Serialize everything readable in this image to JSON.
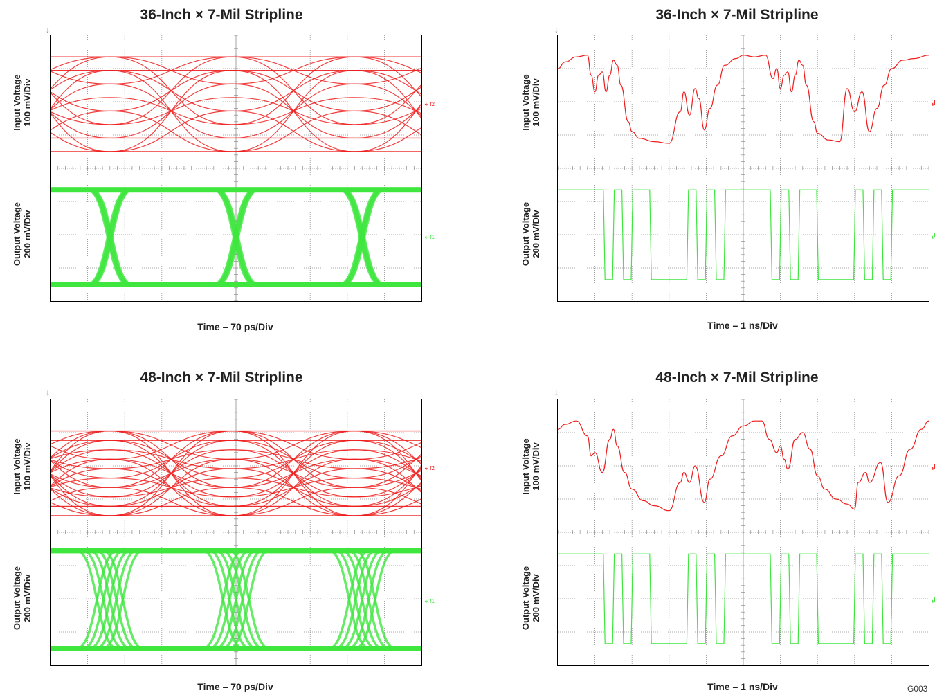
{
  "figure_id": "G003",
  "colors": {
    "input": "#ee1c1c",
    "output": "#3ee63e",
    "grid": "#8c8c8c"
  },
  "chart_data": [
    {
      "type": "line",
      "title": "36-Inch × 7-Mil Stripline",
      "view": "eye diagram",
      "xlabel": "Time – 70 ps/Div",
      "xlim": [
        0,
        10
      ],
      "grid": true,
      "series": [
        {
          "ylabel_line1": "Input Voltage",
          "ylabel_line2": "100 mV/Div",
          "marker": "f2",
          "high_div": 2.85,
          "low_div": 0.0,
          "levels": 8,
          "ui_div": 3.3,
          "crossings_div": [
            1.6,
            4.9,
            8.2
          ]
        },
        {
          "ylabel_line1": "Output Voltage",
          "ylabel_line2": "200 mV/Div",
          "marker": "f1",
          "high_div": 2.85,
          "low_div": 0.0,
          "ui_div": 3.4,
          "crossings_div": [
            1.6,
            5.0,
            8.4
          ],
          "jitter_div": 0.06
        }
      ]
    },
    {
      "type": "line",
      "title": "36-Inch × 7-Mil Stripline",
      "view": "waveform",
      "xlabel": "Time – 1 ns/Div",
      "xlim": [
        0,
        10
      ],
      "grid": true,
      "series": [
        {
          "ylabel_line1": "Input Voltage",
          "ylabel_line2": "100 mV/Div",
          "marker": "f2",
          "x": [
            0,
            0.2,
            0.5,
            0.8,
            0.9,
            1.0,
            1.1,
            1.2,
            1.3,
            1.4,
            1.5,
            1.6,
            1.7,
            1.9,
            2.0,
            2.2,
            2.6,
            3.0,
            3.3,
            3.4,
            3.55,
            3.7,
            3.8,
            3.95,
            4.1,
            4.3,
            4.5,
            4.8,
            5.0,
            5.3,
            5.6,
            5.8,
            5.9,
            6.0,
            6.1,
            6.2,
            6.3,
            6.4,
            6.5,
            6.6,
            6.7,
            6.9,
            7.0,
            7.3,
            7.6,
            7.8,
            8.0,
            8.2,
            8.4,
            8.6,
            8.8,
            9.0,
            9.3,
            9.6,
            10.0
          ],
          "y": [
            2.5,
            2.7,
            2.85,
            2.9,
            2.3,
            1.8,
            2.3,
            2.4,
            1.8,
            2.3,
            2.75,
            2.6,
            2.0,
            0.9,
            0.6,
            0.4,
            0.3,
            0.25,
            1.2,
            1.8,
            1.1,
            1.9,
            1.6,
            0.65,
            1.3,
            2.0,
            2.6,
            2.8,
            2.9,
            2.85,
            2.9,
            2.2,
            2.5,
            1.9,
            2.3,
            2.4,
            1.8,
            2.3,
            2.75,
            2.6,
            2.0,
            0.9,
            0.55,
            0.35,
            0.3,
            1.9,
            1.2,
            1.8,
            0.6,
            1.3,
            2.0,
            2.5,
            2.75,
            2.8,
            2.9
          ]
        },
        {
          "ylabel_line1": "Output Voltage",
          "ylabel_line2": "200 mV/Div",
          "marker": "f1",
          "bits": [
            1,
            1,
            1,
            1,
            1,
            0,
            1,
            0,
            1,
            1,
            0,
            0,
            0,
            0,
            1,
            0,
            1,
            0,
            1,
            1,
            1,
            1,
            1,
            0,
            1,
            0,
            1,
            1,
            0,
            0,
            0,
            0,
            1,
            0,
            1,
            0,
            1,
            1,
            1,
            1
          ],
          "bit_period_div": 0.25,
          "high_div": 2.85,
          "low_div": 0.15
        }
      ]
    },
    {
      "type": "line",
      "title": "48-Inch × 7-Mil Stripline",
      "view": "eye diagram",
      "xlabel": "Time – 70 ps/Div",
      "xlim": [
        0,
        10
      ],
      "grid": true,
      "series": [
        {
          "ylabel_line1": "Input Voltage",
          "ylabel_line2": "100 mV/Div",
          "marker": "f2",
          "high_div": 2.55,
          "low_div": 0.0,
          "levels": 10,
          "ui_div": 3.3,
          "crossings_div": [
            1.6,
            4.9,
            8.2
          ]
        },
        {
          "ylabel_line1": "Output Voltage",
          "ylabel_line2": "200 mV/Div",
          "marker": "f1",
          "high_div": 2.95,
          "low_div": 0.0,
          "ui_div": 3.4,
          "crossings_div": [
            1.6,
            5.0,
            8.4
          ],
          "jitter_div": 0.35
        }
      ]
    },
    {
      "type": "line",
      "title": "48-Inch × 7-Mil Stripline",
      "view": "waveform",
      "xlabel": "Time – 1 ns/Div",
      "xlim": [
        0,
        10
      ],
      "grid": true,
      "series": [
        {
          "ylabel_line1": "Input Voltage",
          "ylabel_line2": "100 mV/Div",
          "marker": "f2",
          "x": [
            0,
            0.2,
            0.5,
            0.8,
            0.9,
            1.0,
            1.2,
            1.4,
            1.5,
            1.6,
            1.8,
            2.0,
            2.3,
            2.6,
            3.0,
            3.3,
            3.4,
            3.55,
            3.7,
            3.95,
            4.1,
            4.4,
            4.7,
            5.0,
            5.3,
            5.5,
            5.7,
            5.9,
            6.0,
            6.1,
            6.2,
            6.4,
            6.6,
            6.8,
            7.0,
            7.2,
            7.5,
            7.8,
            8.0,
            8.1,
            8.3,
            8.4,
            8.7,
            8.9,
            9.2,
            9.5,
            9.8,
            10.0
          ],
          "y": [
            2.6,
            2.75,
            2.85,
            2.4,
            1.8,
            1.9,
            1.3,
            2.3,
            2.6,
            2.1,
            1.3,
            0.8,
            0.45,
            0.3,
            0.15,
            1.0,
            1.3,
            1.0,
            1.5,
            0.4,
            1.1,
            1.8,
            2.4,
            2.7,
            2.85,
            2.85,
            2.3,
            1.9,
            2.1,
            1.7,
            1.4,
            2.3,
            2.5,
            2.0,
            1.2,
            0.8,
            0.5,
            0.35,
            0.2,
            1.0,
            1.3,
            1.0,
            1.6,
            0.4,
            1.2,
            2.0,
            2.6,
            2.85
          ]
        },
        {
          "ylabel_line1": "Output Voltage",
          "ylabel_line2": "200 mV/Div",
          "marker": "f1",
          "bits": [
            1,
            1,
            1,
            1,
            1,
            0,
            1,
            0,
            1,
            1,
            0,
            0,
            0,
            0,
            1,
            0,
            1,
            0,
            1,
            1,
            1,
            1,
            1,
            0,
            1,
            0,
            1,
            1,
            0,
            0,
            0,
            0,
            1,
            0,
            1,
            0,
            1,
            1,
            1,
            1
          ],
          "bit_period_div": 0.25,
          "high_div": 2.85,
          "low_div": 0.15
        }
      ]
    }
  ]
}
